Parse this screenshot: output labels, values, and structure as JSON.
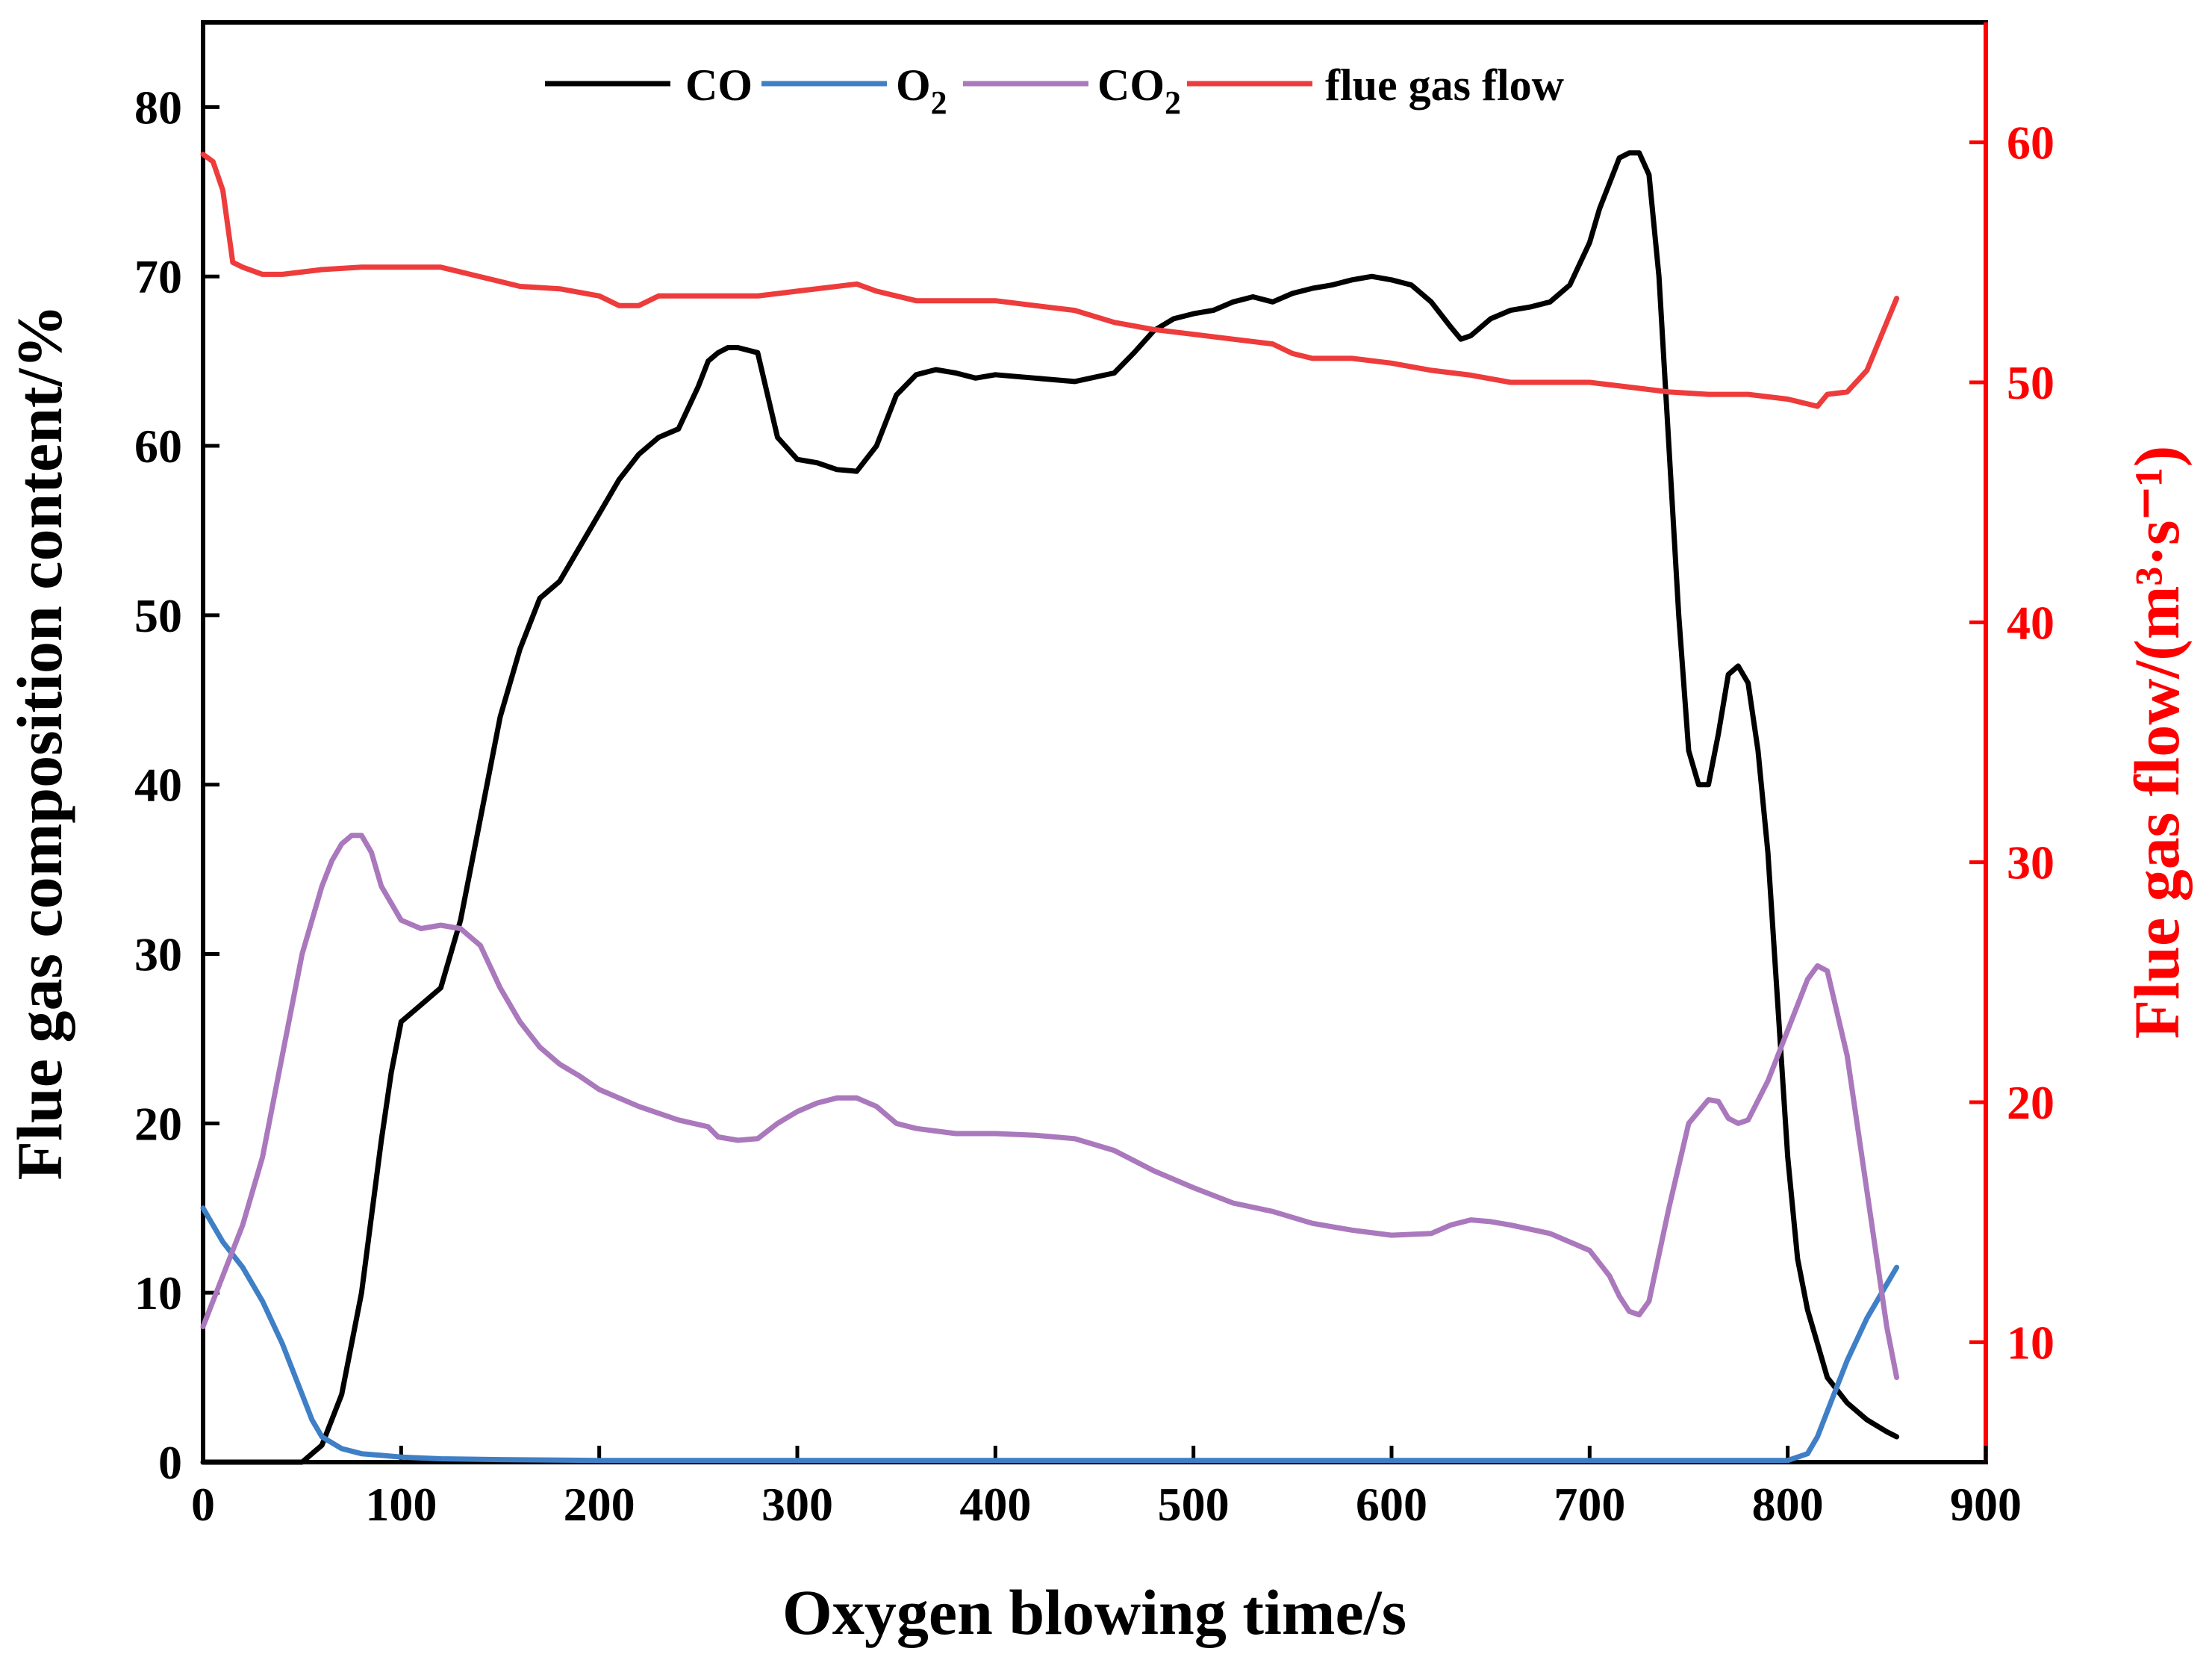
{
  "chart_data": {
    "type": "line",
    "title": "",
    "xlabel": "Oxygen blowing time/s",
    "ylabel": "Flue gas composition content/%",
    "y2label": "Flue gas flow/(m³·s⁻¹)",
    "xlim": [
      0,
      900
    ],
    "ylim": [
      0,
      85
    ],
    "y2lim": [
      5,
      65
    ],
    "xticks": [
      0,
      100,
      200,
      300,
      400,
      500,
      600,
      700,
      800,
      900
    ],
    "yticks": [
      0,
      10,
      20,
      30,
      40,
      50,
      60,
      70,
      80
    ],
    "y2ticks": [
      10,
      20,
      30,
      40,
      50,
      60
    ],
    "legend_position": "top",
    "colors": {
      "axis_left": "#000000",
      "axis_right": "#ff0000"
    },
    "legend": [
      {
        "id": "co",
        "text": "CO",
        "sub": ""
      },
      {
        "id": "o2",
        "text": "O",
        "sub": "2"
      },
      {
        "id": "co2",
        "text": "CO",
        "sub": "2"
      },
      {
        "id": "flow",
        "text": "flue gas flow",
        "sub": ""
      }
    ],
    "series": [
      {
        "name": "CO",
        "axis": "left",
        "color": "#000000",
        "x": [
          0,
          20,
          40,
          50,
          60,
          70,
          80,
          90,
          95,
          100,
          110,
          120,
          130,
          140,
          150,
          160,
          170,
          180,
          190,
          200,
          210,
          220,
          230,
          240,
          250,
          255,
          260,
          265,
          270,
          280,
          285,
          290,
          300,
          310,
          320,
          330,
          340,
          350,
          360,
          370,
          380,
          390,
          400,
          420,
          440,
          460,
          470,
          480,
          490,
          500,
          510,
          520,
          530,
          540,
          550,
          560,
          570,
          580,
          590,
          600,
          610,
          620,
          630,
          635,
          640,
          650,
          660,
          670,
          680,
          690,
          700,
          705,
          710,
          715,
          720,
          725,
          730,
          735,
          740,
          745,
          750,
          755,
          760,
          765,
          770,
          775,
          780,
          785,
          790,
          795,
          800,
          805,
          810,
          815,
          820,
          830,
          840,
          850,
          855
        ],
        "y": [
          0,
          0,
          0,
          0,
          1,
          4,
          10,
          19,
          23,
          26,
          27,
          28,
          32,
          38,
          44,
          48,
          51,
          52,
          54,
          56,
          58,
          59.5,
          60.5,
          61,
          63.5,
          65,
          65.5,
          65.8,
          65.8,
          65.5,
          63,
          60.5,
          59.2,
          59,
          58.6,
          58.5,
          60,
          63,
          64.2,
          64.5,
          64.3,
          64,
          64.2,
          64,
          63.8,
          64.3,
          65.5,
          66.8,
          67.5,
          67.8,
          68,
          68.5,
          68.8,
          68.5,
          69,
          69.3,
          69.5,
          69.8,
          70,
          69.8,
          69.5,
          68.5,
          67,
          66.3,
          66.5,
          67.5,
          68,
          68.2,
          68.5,
          69.5,
          72,
          74,
          75.5,
          77,
          77.3,
          77.3,
          76,
          70,
          60,
          50,
          42,
          40,
          40,
          43,
          46.5,
          47,
          46,
          42,
          36,
          27,
          18,
          12,
          9,
          7,
          5,
          3.5,
          2.5,
          1.8,
          1.5
        ],
        "y_scaled_hint": "data units"
      },
      {
        "name": "O2",
        "axis": "left",
        "color": "#3f7fc6",
        "x": [
          0,
          10,
          20,
          30,
          40,
          50,
          55,
          60,
          70,
          80,
          90,
          100,
          120,
          150,
          200,
          300,
          400,
          500,
          600,
          700,
          800,
          810,
          815,
          820,
          830,
          840,
          850,
          855
        ],
        "y": [
          15,
          13,
          11.5,
          9.5,
          7,
          4,
          2.5,
          1.5,
          0.8,
          0.5,
          0.4,
          0.3,
          0.2,
          0.15,
          0.1,
          0.1,
          0.1,
          0.1,
          0.1,
          0.1,
          0.1,
          0.5,
          1.5,
          3,
          6,
          8.5,
          10.5,
          11.5
        ]
      },
      {
        "name": "CO2",
        "axis": "left",
        "color": "#aa78bc",
        "x": [
          0,
          10,
          20,
          30,
          40,
          50,
          60,
          65,
          70,
          75,
          80,
          85,
          90,
          100,
          110,
          120,
          130,
          140,
          150,
          160,
          170,
          180,
          190,
          200,
          220,
          240,
          255,
          260,
          270,
          280,
          290,
          300,
          310,
          320,
          330,
          340,
          350,
          360,
          380,
          400,
          420,
          440,
          460,
          480,
          500,
          520,
          540,
          560,
          580,
          600,
          620,
          630,
          640,
          650,
          660,
          680,
          700,
          710,
          715,
          720,
          725,
          730,
          740,
          750,
          760,
          765,
          770,
          775,
          780,
          790,
          800,
          810,
          815,
          820,
          830,
          840,
          850,
          855
        ],
        "y": [
          8,
          11,
          14,
          18,
          24,
          30,
          34,
          35.5,
          36.5,
          37,
          37,
          36,
          34,
          32,
          31.5,
          31.7,
          31.5,
          30.5,
          28,
          26,
          24.5,
          23.5,
          22.8,
          22,
          21,
          20.2,
          19.8,
          19.2,
          19,
          19.1,
          20,
          20.7,
          21.2,
          21.5,
          21.5,
          21,
          20,
          19.7,
          19.4,
          19.4,
          19.3,
          19.1,
          18.4,
          17.2,
          16.2,
          15.3,
          14.8,
          14.1,
          13.7,
          13.4,
          13.5,
          14,
          14.3,
          14.2,
          14,
          13.5,
          12.5,
          11,
          9.8,
          8.9,
          8.7,
          9.5,
          15,
          20,
          21.4,
          21.3,
          20.3,
          20,
          20.2,
          22.5,
          25.5,
          28.5,
          29.3,
          29,
          24,
          16,
          8,
          5
        ],
        "y_scaled_hint": "data units"
      },
      {
        "name": "flue gas flow",
        "axis": "right",
        "color": "#ee3b3b",
        "x": [
          0,
          5,
          10,
          15,
          20,
          30,
          40,
          60,
          80,
          100,
          120,
          130,
          140,
          150,
          160,
          180,
          200,
          210,
          220,
          230,
          260,
          280,
          300,
          330,
          340,
          350,
          360,
          380,
          400,
          420,
          440,
          460,
          480,
          500,
          520,
          540,
          550,
          560,
          580,
          600,
          620,
          640,
          660,
          700,
          720,
          740,
          760,
          780,
          800,
          810,
          815,
          820,
          830,
          840,
          850,
          855
        ],
        "y": [
          59.5,
          59.2,
          58,
          55,
          54.8,
          54.5,
          54.5,
          54.7,
          54.8,
          54.8,
          54.8,
          54.6,
          54.4,
          54.2,
          54,
          53.9,
          53.6,
          53.2,
          53.2,
          53.6,
          53.6,
          53.6,
          53.8,
          54.1,
          53.8,
          53.6,
          53.4,
          53.4,
          53.4,
          53.2,
          53,
          52.5,
          52.2,
          52,
          51.8,
          51.6,
          51.2,
          51,
          51,
          50.8,
          50.5,
          50.3,
          50,
          50,
          49.8,
          49.6,
          49.5,
          49.5,
          49.3,
          49.1,
          49,
          49.5,
          49.6,
          50.5,
          52.5,
          53.5
        ]
      }
    ]
  }
}
